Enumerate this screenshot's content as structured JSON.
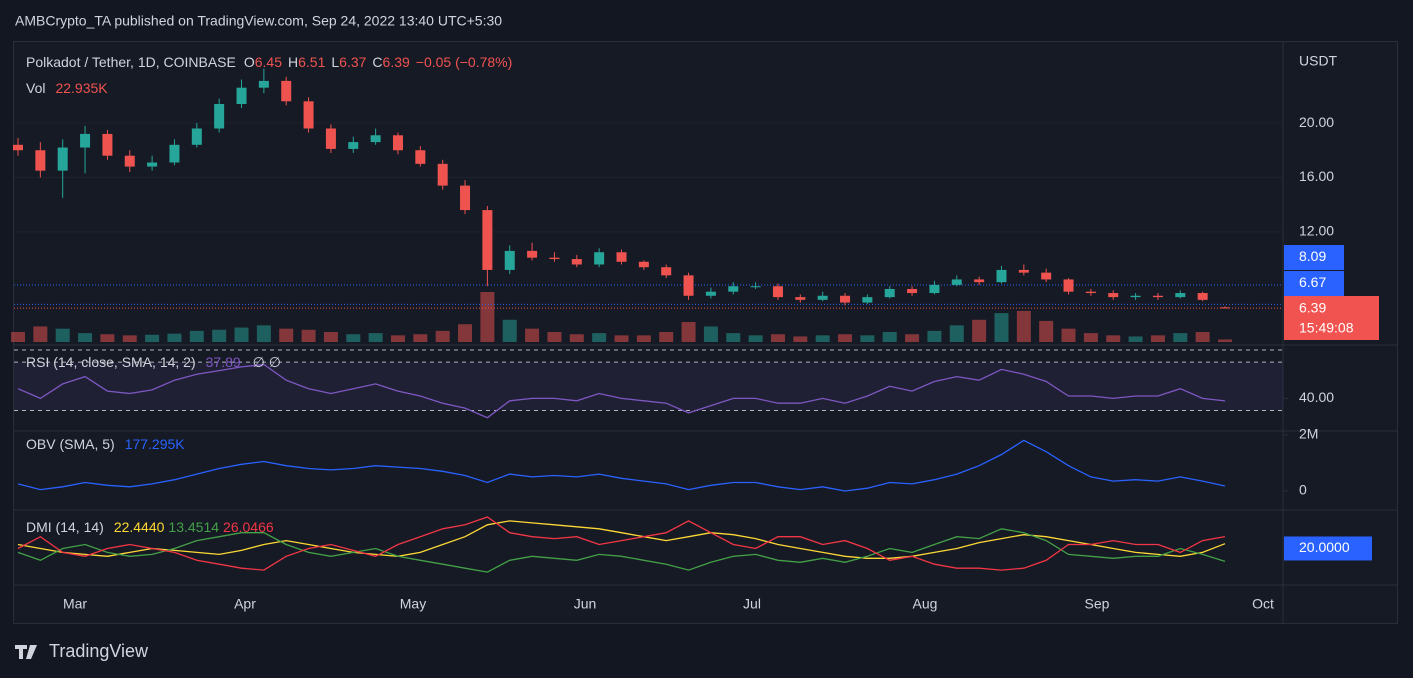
{
  "header": {
    "publisher": "AMBCrypto_TA published on TradingView.com, Sep 24, 2022 13:40 UTC+5:30"
  },
  "footer": {
    "brand": "TradingView"
  },
  "chart_data": [
    {
      "type": "candlestick",
      "title": "Polkadot / Tether, 1D, COINBASE",
      "legend": {
        "o_label": "O",
        "o": 6.45,
        "h_label": "H",
        "h": 6.51,
        "l_label": "L",
        "l": 6.37,
        "c_label": "C",
        "c": 6.39,
        "change": "−0.05 (−0.78%)"
      },
      "up_color": "#26a69a",
      "down_color": "#ef5350",
      "open": [
        18.4,
        18.0,
        16.5,
        18.2,
        19.2,
        17.6,
        16.8,
        17.1,
        18.4,
        19.6,
        21.4,
        22.6,
        23.1,
        21.6,
        19.6,
        18.1,
        18.6,
        19.1,
        18.0,
        17.0,
        15.4,
        13.6,
        9.2,
        10.6,
        10.1,
        10.0,
        9.6,
        10.5,
        9.8,
        9.4,
        8.8,
        7.3,
        7.6,
        8.0,
        8.0,
        7.2,
        7.0,
        7.3,
        6.8,
        7.2,
        7.8,
        7.5,
        8.1,
        8.5,
        8.3,
        9.2,
        9.0,
        8.5,
        7.6,
        7.5,
        7.2,
        7.3,
        7.2,
        7.5,
        6.45
      ],
      "high": [
        18.9,
        18.6,
        18.8,
        19.8,
        19.5,
        18.0,
        17.6,
        18.8,
        20.0,
        21.8,
        23.2,
        24.0,
        23.4,
        21.9,
        19.9,
        19.0,
        19.6,
        19.3,
        18.3,
        17.3,
        15.8,
        13.9,
        11.0,
        11.2,
        10.5,
        10.3,
        10.8,
        10.7,
        9.9,
        9.6,
        9.0,
        7.9,
        8.3,
        8.3,
        8.2,
        7.4,
        7.6,
        7.5,
        7.4,
        8.0,
        8.0,
        8.4,
        8.8,
        8.7,
        9.5,
        9.6,
        9.3,
        8.6,
        7.8,
        7.7,
        7.5,
        7.5,
        7.7,
        7.6,
        6.51
      ],
      "low": [
        17.6,
        16.0,
        14.5,
        16.3,
        17.3,
        16.4,
        16.5,
        16.9,
        18.2,
        19.3,
        21.1,
        22.2,
        21.3,
        19.3,
        17.8,
        17.8,
        18.4,
        17.7,
        16.8,
        15.1,
        13.3,
        8.0,
        8.9,
        9.9,
        9.8,
        9.4,
        9.4,
        9.6,
        9.2,
        8.6,
        7.0,
        7.1,
        7.4,
        7.8,
        7.0,
        6.8,
        6.9,
        6.6,
        6.7,
        7.1,
        7.3,
        7.4,
        8.0,
        8.1,
        8.2,
        8.8,
        8.3,
        7.4,
        7.3,
        7.0,
        7.0,
        7.0,
        7.1,
        6.9,
        6.37
      ],
      "close": [
        18.0,
        16.5,
        18.2,
        19.2,
        17.6,
        16.8,
        17.1,
        18.4,
        19.6,
        21.4,
        22.6,
        23.1,
        21.6,
        19.6,
        18.1,
        18.6,
        19.1,
        18.0,
        17.0,
        15.4,
        13.6,
        9.2,
        10.6,
        10.1,
        10.0,
        9.6,
        10.5,
        9.8,
        9.4,
        8.8,
        7.3,
        7.6,
        8.0,
        8.0,
        7.2,
        7.0,
        7.3,
        6.8,
        7.2,
        7.8,
        7.5,
        8.1,
        8.5,
        8.3,
        9.2,
        9.0,
        8.5,
        7.6,
        7.5,
        7.2,
        7.3,
        7.2,
        7.5,
        7.0,
        6.39
      ],
      "volume": {
        "name": "Vol",
        "label": "22.935K",
        "values": [
          90000,
          140000,
          120000,
          80000,
          70000,
          60000,
          65000,
          75000,
          100000,
          110000,
          130000,
          150000,
          120000,
          110000,
          90000,
          70000,
          80000,
          60000,
          70000,
          100000,
          160000,
          450000,
          200000,
          120000,
          90000,
          70000,
          80000,
          60000,
          60000,
          90000,
          180000,
          140000,
          80000,
          60000,
          70000,
          50000,
          60000,
          70000,
          60000,
          90000,
          70000,
          100000,
          150000,
          200000,
          260000,
          280000,
          190000,
          120000,
          80000,
          60000,
          50000,
          60000,
          80000,
          90000,
          22935
        ]
      },
      "ylim": [
        3.9,
        25.96
      ],
      "yticks": [
        {
          "value": 12,
          "label": "12.00"
        },
        {
          "value": 16,
          "label": "16.00"
        },
        {
          "value": 20,
          "label": "20.00"
        }
      ],
      "y_axis_title": "USDT",
      "price_lines": [
        {
          "value": 8.09,
          "color": "#2962ff"
        },
        {
          "value": 6.67,
          "color": "#2962ff"
        }
      ],
      "last_price": {
        "value": 6.39,
        "countdown": "15:49:08",
        "color": "#f05350"
      },
      "xtick_labels": [
        "Mar",
        "Apr",
        "May",
        "Jun",
        "Jul",
        "Aug",
        "Sep",
        "Oct"
      ]
    },
    {
      "type": "line",
      "title": "RSI (14, close, SMA, 14, 2)",
      "legend_value": 37.89,
      "legend_extra": "∅ ∅",
      "series": [
        {
          "color": "#7e57c2",
          "values": [
            48,
            40,
            52,
            58,
            46,
            44,
            47,
            55,
            60,
            63,
            66,
            68,
            55,
            48,
            44,
            48,
            52,
            46,
            42,
            36,
            32,
            24,
            38,
            40,
            40,
            38,
            44,
            40,
            38,
            36,
            28,
            34,
            40,
            40,
            36,
            36,
            40,
            36,
            42,
            50,
            46,
            54,
            58,
            55,
            64,
            60,
            54,
            42,
            42,
            40,
            42,
            42,
            48,
            40,
            37.89
          ]
        }
      ],
      "ylim": [
        18,
        80
      ],
      "yticks": [
        {
          "value": 40,
          "label": "40.00"
        }
      ],
      "bands": [
        70,
        30
      ]
    },
    {
      "type": "line",
      "title": "OBV (SMA, 5)",
      "legend_value": "177.295K",
      "series": [
        {
          "color": "#2962ff",
          "values": [
            250000,
            50000,
            150000,
            300000,
            200000,
            150000,
            250000,
            400000,
            600000,
            800000,
            950000,
            1050000,
            900000,
            800000,
            750000,
            800000,
            900000,
            850000,
            800000,
            700000,
            550000,
            300000,
            600000,
            500000,
            550000,
            500000,
            600000,
            450000,
            350000,
            250000,
            50000,
            200000,
            300000,
            300000,
            150000,
            50000,
            150000,
            0,
            100000,
            300000,
            250000,
            400000,
            600000,
            900000,
            1300000,
            1800000,
            1400000,
            900000,
            500000,
            350000,
            400000,
            350000,
            500000,
            350000,
            177295
          ]
        }
      ],
      "ylim": [
        -500000,
        2100000
      ],
      "yticks": [
        {
          "value": 2000000,
          "label": "2M"
        },
        0
      ]
    },
    {
      "type": "line",
      "title": "DMI (14, 14)",
      "series": [
        {
          "color": "#fdd835",
          "legend_label": "22.4440",
          "values": [
            22,
            20,
            18,
            17,
            16,
            18,
            20,
            19,
            18,
            17,
            19,
            22,
            24,
            22,
            20,
            18,
            17,
            16,
            18,
            22,
            26,
            32,
            34,
            33,
            32,
            31,
            30,
            28,
            26,
            24,
            26,
            28,
            27,
            25,
            22,
            20,
            18,
            16,
            15,
            15,
            16,
            18,
            20,
            23,
            25,
            27,
            26,
            24,
            22,
            20,
            18,
            17,
            16,
            18,
            22.444
          ]
        },
        {
          "color": "#43a047",
          "legend_label": "13.4514",
          "values": [
            18,
            14,
            20,
            22,
            18,
            16,
            17,
            20,
            24,
            26,
            28,
            28,
            22,
            18,
            16,
            18,
            20,
            16,
            14,
            12,
            10,
            8,
            14,
            16,
            15,
            14,
            17,
            16,
            14,
            12,
            9,
            13,
            16,
            17,
            14,
            13,
            15,
            13,
            16,
            20,
            18,
            22,
            26,
            25,
            30,
            28,
            24,
            17,
            16,
            15,
            16,
            16,
            20,
            17,
            13.4514
          ]
        },
        {
          "color": "#f23645",
          "legend_label": "26.0466",
          "values": [
            20,
            26,
            18,
            16,
            20,
            22,
            20,
            18,
            14,
            12,
            10,
            9,
            16,
            20,
            22,
            19,
            16,
            22,
            26,
            30,
            32,
            36,
            28,
            26,
            25,
            26,
            22,
            24,
            26,
            28,
            34,
            28,
            22,
            20,
            26,
            26,
            22,
            24,
            20,
            14,
            16,
            12,
            10,
            10,
            9,
            10,
            14,
            22,
            22,
            24,
            22,
            22,
            18,
            24,
            26.0466
          ]
        }
      ],
      "ylim": [
        5,
        37
      ],
      "yticks": [
        {
          "value": 20,
          "label": "20.0000"
        }
      ]
    }
  ]
}
